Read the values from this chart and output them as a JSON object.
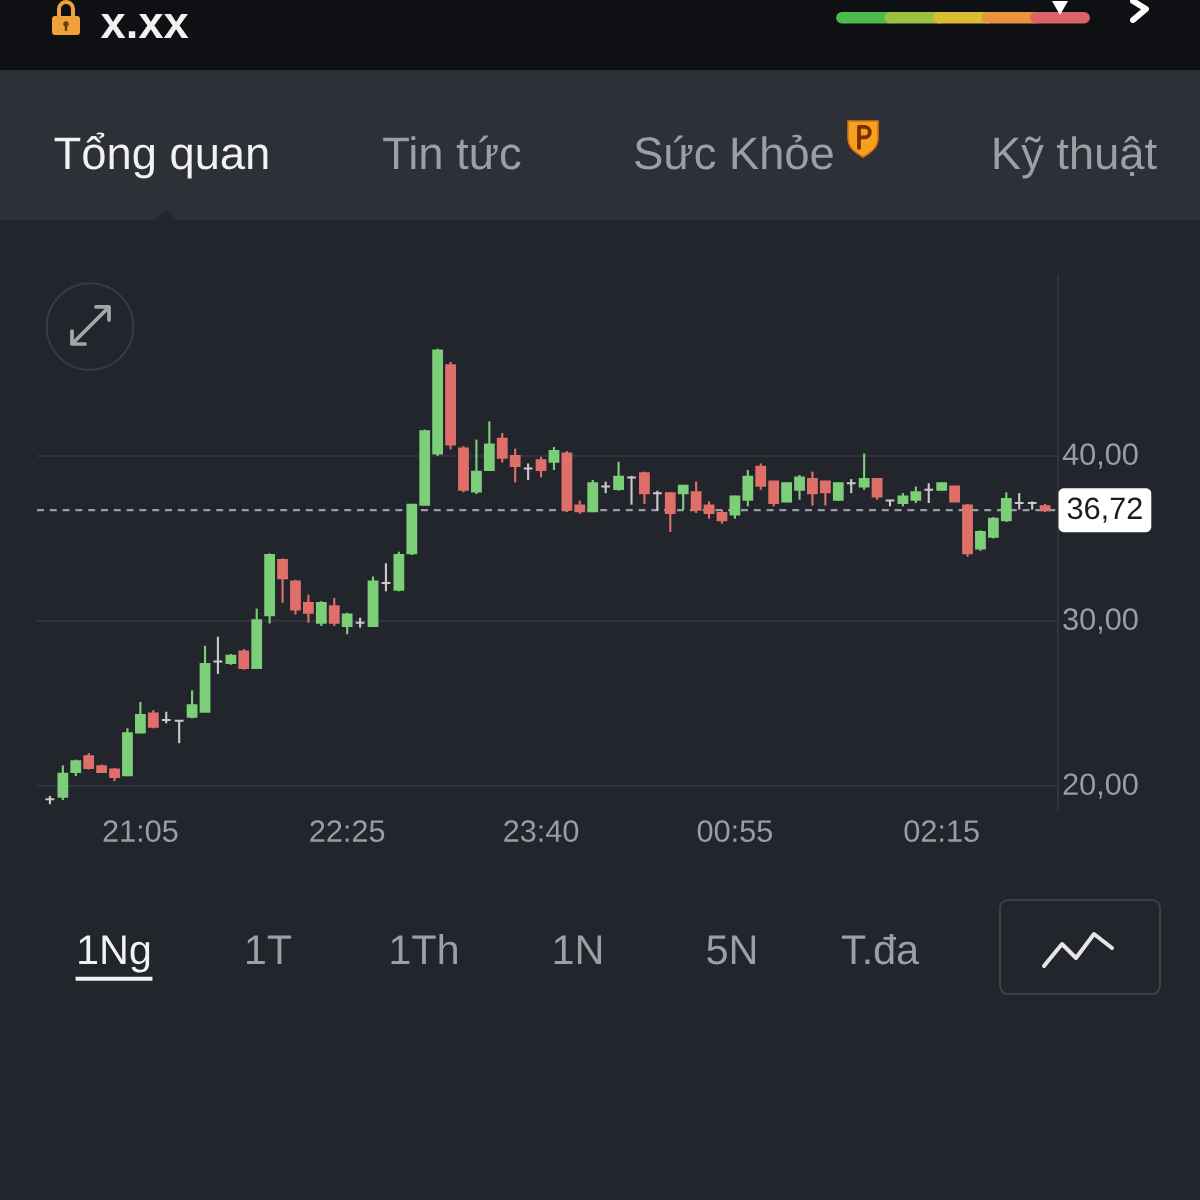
{
  "chart_data": {
    "type": "candlestick",
    "title": "x.xx",
    "annotations": [
      "Tổng quan",
      "Tin tức",
      "Sức Khỏe",
      "Kỹ thuật",
      "1Ng",
      "1T",
      "1Th",
      "1N",
      "5N",
      "T.đa"
    ],
    "categories": [
      null,
      null,
      null,
      null,
      null,
      null,
      null,
      "21:05",
      null,
      null,
      null,
      null,
      null,
      null,
      null,
      null,
      null,
      null,
      null,
      null,
      null,
      null,
      null,
      "22:25",
      null,
      null,
      null,
      null,
      null,
      null,
      null,
      null,
      null,
      null,
      null,
      null,
      null,
      null,
      "23:40",
      null,
      null,
      null,
      null,
      null,
      null,
      null,
      null,
      null,
      null,
      null,
      null,
      null,
      null,
      "00:55",
      null,
      null,
      null,
      null,
      null,
      null,
      null,
      null,
      null,
      null,
      null,
      null,
      null,
      null,
      null,
      "02:15",
      null,
      null,
      null,
      null,
      null,
      null,
      null,
      null
    ],
    "ohlc": [
      [
        19.2,
        19.4,
        18.9,
        19.2
      ],
      [
        19.35,
        21.25,
        19.15,
        20.75
      ],
      [
        20.85,
        21.6,
        20.6,
        21.5
      ],
      [
        21.8,
        22.0,
        21.0,
        21.1
      ],
      [
        21.2,
        21.3,
        20.8,
        20.85
      ],
      [
        21.0,
        21.1,
        20.3,
        20.55
      ],
      [
        20.65,
        23.5,
        20.6,
        23.2
      ],
      [
        23.25,
        25.1,
        23.2,
        24.3
      ],
      [
        24.4,
        24.6,
        23.5,
        23.6
      ],
      [
        24.0,
        24.5,
        23.8,
        24.0
      ],
      [
        23.95,
        23.95,
        22.6,
        23.95
      ],
      [
        24.2,
        25.8,
        24.1,
        24.9
      ],
      [
        24.5,
        28.5,
        24.5,
        27.4
      ],
      [
        27.55,
        29.05,
        26.8,
        27.55
      ],
      [
        27.45,
        28.0,
        27.35,
        27.9
      ],
      [
        28.15,
        28.3,
        27.05,
        27.15
      ],
      [
        27.15,
        30.75,
        27.1,
        30.05
      ],
      [
        30.35,
        34.1,
        29.85,
        34.0
      ],
      [
        33.7,
        33.8,
        31.1,
        32.6
      ],
      [
        32.4,
        32.5,
        30.4,
        30.7
      ],
      [
        31.1,
        31.6,
        29.9,
        30.5
      ],
      [
        29.9,
        31.2,
        29.7,
        31.1
      ],
      [
        30.9,
        31.4,
        29.7,
        29.9
      ],
      [
        29.7,
        30.5,
        29.2,
        30.4
      ],
      [
        29.9,
        30.2,
        29.6,
        29.9
      ],
      [
        29.7,
        32.7,
        29.7,
        32.4
      ],
      [
        32.3,
        33.5,
        31.8,
        32.3
      ],
      [
        31.9,
        34.2,
        31.8,
        34.0
      ],
      [
        34.1,
        37.1,
        34.0,
        37.05
      ],
      [
        37.05,
        41.6,
        37.0,
        41.5
      ],
      [
        40.15,
        46.5,
        40.0,
        46.4
      ],
      [
        45.5,
        45.7,
        40.4,
        40.7
      ],
      [
        40.45,
        40.6,
        37.8,
        37.95
      ],
      [
        37.85,
        41.0,
        37.7,
        39.05
      ],
      [
        39.15,
        42.1,
        39.1,
        40.7
      ],
      [
        41.05,
        41.4,
        39.6,
        39.9
      ],
      [
        40.0,
        40.45,
        38.4,
        39.4
      ],
      [
        39.25,
        39.55,
        38.55,
        39.25
      ],
      [
        39.75,
        39.95,
        38.7,
        39.15
      ],
      [
        39.65,
        40.55,
        39.15,
        40.3
      ],
      [
        40.15,
        40.3,
        36.6,
        36.75
      ],
      [
        37.0,
        37.3,
        36.5,
        36.65
      ],
      [
        36.65,
        38.55,
        36.6,
        38.35
      ],
      [
        38.15,
        38.45,
        37.75,
        38.15
      ],
      [
        38.0,
        39.65,
        37.9,
        38.75
      ],
      [
        38.7,
        38.8,
        37.05,
        38.7
      ],
      [
        38.95,
        39.05,
        37.1,
        37.75
      ],
      [
        37.75,
        37.9,
        36.7,
        37.75
      ],
      [
        37.75,
        37.8,
        35.4,
        36.55
      ],
      [
        37.75,
        38.25,
        36.75,
        38.2
      ],
      [
        37.8,
        38.45,
        36.55,
        36.75
      ],
      [
        37.0,
        37.25,
        36.2,
        36.55
      ],
      [
        36.55,
        36.75,
        35.9,
        36.1
      ],
      [
        36.45,
        37.6,
        36.2,
        37.55
      ],
      [
        37.35,
        39.15,
        36.95,
        38.75
      ],
      [
        39.35,
        39.55,
        37.95,
        38.2
      ],
      [
        38.45,
        38.5,
        36.95,
        37.15
      ],
      [
        37.25,
        38.4,
        37.2,
        38.35
      ],
      [
        37.95,
        38.85,
        37.35,
        38.7
      ],
      [
        38.6,
        39.05,
        37.0,
        37.75
      ],
      [
        38.45,
        38.5,
        37.0,
        37.8
      ],
      [
        37.35,
        38.4,
        37.3,
        38.35
      ],
      [
        38.35,
        38.6,
        37.75,
        38.35
      ],
      [
        38.15,
        40.15,
        37.95,
        38.6
      ],
      [
        38.6,
        38.65,
        37.35,
        37.55
      ],
      [
        37.3,
        37.35,
        36.95,
        37.3
      ],
      [
        37.15,
        37.75,
        36.95,
        37.55
      ],
      [
        37.35,
        38.15,
        37.15,
        37.8
      ],
      [
        37.95,
        38.35,
        37.15,
        37.95
      ],
      [
        37.95,
        38.4,
        37.9,
        38.35
      ],
      [
        38.15,
        38.2,
        37.2,
        37.25
      ],
      [
        37.0,
        37.1,
        33.9,
        34.1
      ],
      [
        34.4,
        35.5,
        34.25,
        35.4
      ],
      [
        35.1,
        36.3,
        35.0,
        36.2
      ],
      [
        36.1,
        37.8,
        36.0,
        37.4
      ],
      [
        37.15,
        37.75,
        36.75,
        37.15
      ],
      [
        37.15,
        37.25,
        36.75,
        37.15
      ],
      [
        36.95,
        37.1,
        36.6,
        36.72
      ]
    ],
    "colors": [
      "#c9c9c9",
      "#7ccf78",
      "#7ccf78",
      "#e06f6a",
      "#e06f6a",
      "#e06f6a",
      "#7ccf78",
      "#7ccf78",
      "#e06f6a",
      "#c9c9c9",
      "#c9c9c9",
      "#7ccf78",
      "#7ccf78",
      "#c9c9c9",
      "#7ccf78",
      "#e06f6a",
      "#7ccf78",
      "#7ccf78",
      "#e06f6a",
      "#e06f6a",
      "#e06f6a",
      "#7ccf78",
      "#e06f6a",
      "#7ccf78",
      "#c9c9c9",
      "#7ccf78",
      "#c9c9c9",
      "#7ccf78",
      "#7ccf78",
      "#7ccf78",
      "#7ccf78",
      "#e06f6a",
      "#e06f6a",
      "#7ccf78",
      "#7ccf78",
      "#e06f6a",
      "#e06f6a",
      "#c9c9c9",
      "#e06f6a",
      "#7ccf78",
      "#e06f6a",
      "#e06f6a",
      "#7ccf78",
      "#c9c9c9",
      "#7ccf78",
      "#c9c9c9",
      "#e06f6a",
      "#c9c9c9",
      "#e06f6a",
      "#7ccf78",
      "#e06f6a",
      "#e06f6a",
      "#e06f6a",
      "#7ccf78",
      "#7ccf78",
      "#e06f6a",
      "#e06f6a",
      "#7ccf78",
      "#7ccf78",
      "#e06f6a",
      "#e06f6a",
      "#7ccf78",
      "#c9c9c9",
      "#7ccf78",
      "#e06f6a",
      "#c9c9c9",
      "#7ccf78",
      "#7ccf78",
      "#c9c9c9",
      "#7ccf78",
      "#e06f6a",
      "#e06f6a",
      "#7ccf78",
      "#7ccf78",
      "#7ccf78",
      "#c9c9c9",
      "#c9c9c9",
      "#e06f6a"
    ],
    "ylim": [
      18.5,
      51
    ],
    "yticks": [
      {
        "value": 20,
        "label": "20,00"
      },
      {
        "value": 30,
        "label": "30,00"
      },
      {
        "value": 40,
        "label": "40,00"
      }
    ],
    "grid": "y",
    "ref_lines": [
      {
        "axis": "y",
        "value": 36.72,
        "label": "36,72",
        "line_style": "dashed",
        "color": "#9a9da4"
      }
    ]
  }
}
